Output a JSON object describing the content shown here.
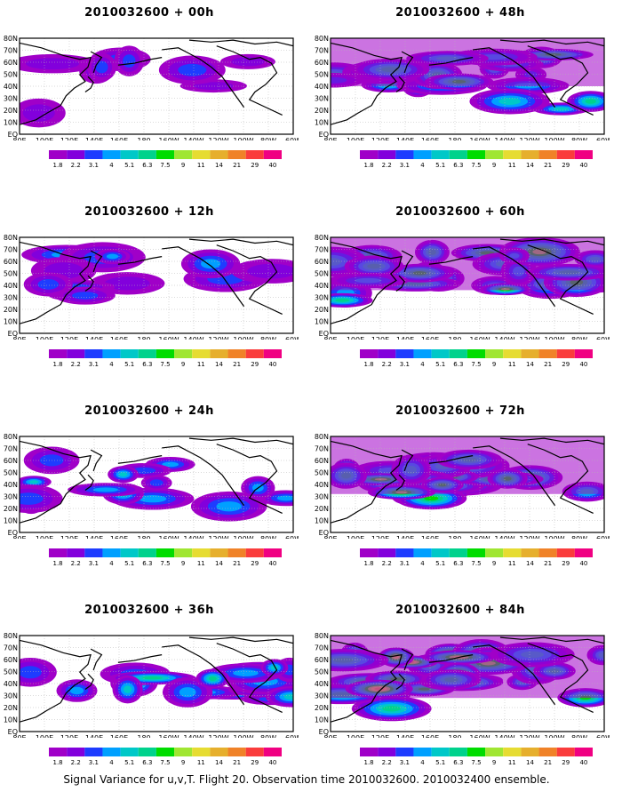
{
  "panels": [
    {
      "title": "2010032600 + 00h",
      "lead_hours": 0,
      "intensity": 1
    },
    {
      "title": "2010032600 + 48h",
      "lead_hours": 48,
      "intensity": 5
    },
    {
      "title": "2010032600 + 12h",
      "lead_hours": 12,
      "intensity": 2
    },
    {
      "title": "2010032600 + 60h",
      "lead_hours": 60,
      "intensity": 6
    },
    {
      "title": "2010032600 + 24h",
      "lead_hours": 24,
      "intensity": 3
    },
    {
      "title": "2010032600 + 72h",
      "lead_hours": 72,
      "intensity": 7
    },
    {
      "title": "2010032600 + 36h",
      "lead_hours": 36,
      "intensity": 4
    },
    {
      "title": "2010032600 + 84h",
      "lead_hours": 84,
      "intensity": 8
    }
  ],
  "lat_labels": [
    "80N",
    "70N",
    "60N",
    "50N",
    "40N",
    "30N",
    "20N",
    "10N",
    "EQ"
  ],
  "lon_labels": [
    "80E",
    "100E",
    "120E",
    "140E",
    "160E",
    "180",
    "160W",
    "140W",
    "120W",
    "100W",
    "80W",
    "60W"
  ],
  "colorbar": {
    "levels": [
      "1.8",
      "2.2",
      "3.1",
      "4",
      "5.1",
      "6.3",
      "7.5",
      "9",
      "11",
      "14",
      "21",
      "29",
      "40"
    ],
    "colors": [
      "#a000c8",
      "#8200dc",
      "#1e3cff",
      "#00a0ff",
      "#00c8c8",
      "#00d28c",
      "#00dc00",
      "#a0e632",
      "#e6dc32",
      "#e6af2d",
      "#f08228",
      "#fa3c3c",
      "#f00082"
    ]
  },
  "caption": "Signal Variance for u,v,T. Flight 20. Observation time 2010032600. 2010032400 ensemble."
}
